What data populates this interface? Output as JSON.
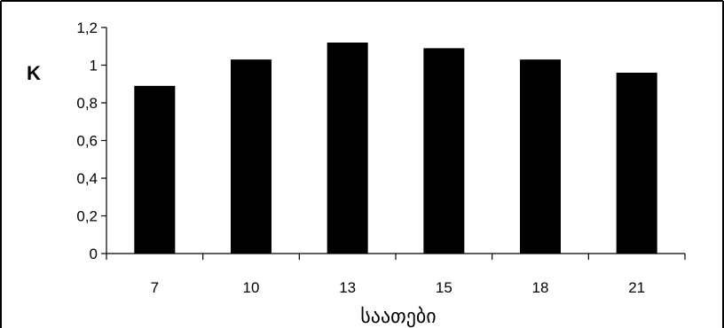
{
  "chart_data": {
    "type": "bar",
    "categories": [
      "7",
      "10",
      "13",
      "15",
      "18",
      "21"
    ],
    "values": [
      0.89,
      1.03,
      1.12,
      1.09,
      1.03,
      0.96
    ],
    "ylabel": "K",
    "xlabel": "საათები",
    "ylim": [
      0,
      1.2
    ],
    "yticks": [
      "0",
      "0,2",
      "0,4",
      "0,6",
      "0,8",
      "1",
      "1,2"
    ],
    "grid": false,
    "legend": "none",
    "colors": {
      "bar": "#000000",
      "axis": "#000000",
      "background": "#ffffff",
      "frame": "#000000"
    }
  }
}
